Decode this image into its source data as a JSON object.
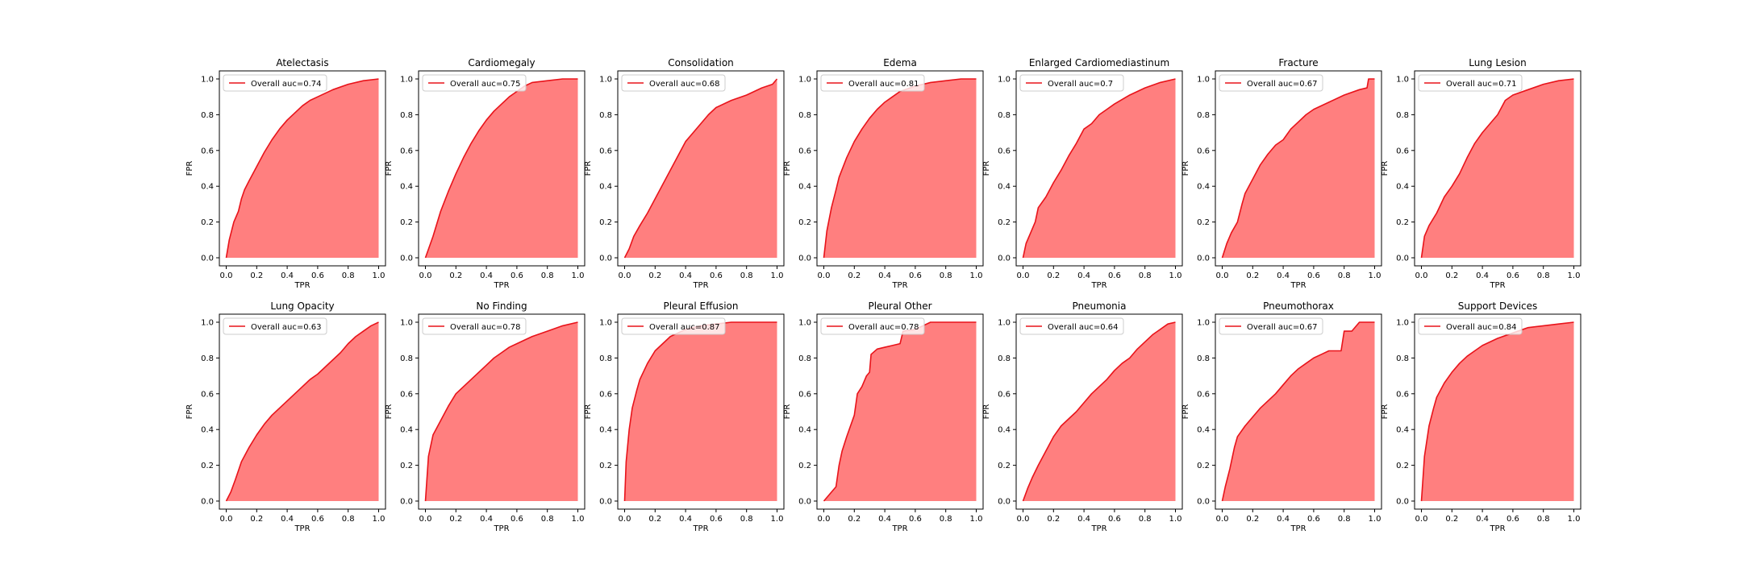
{
  "figure": {
    "curve_color": "#e8131a",
    "fill_color": "#ff7f7f",
    "legend_prefix": "Overall auc="
  },
  "chart_data": [
    {
      "type": "area",
      "title": "Atelectasis",
      "xlabel": "TPR",
      "ylabel": "FPR",
      "xlim": [
        0,
        1
      ],
      "ylim": [
        0,
        1
      ],
      "xticks": [
        "0.0",
        "0.2",
        "0.4",
        "0.6",
        "0.8",
        "1.0"
      ],
      "yticks": [
        "0.0",
        "0.2",
        "0.4",
        "0.6",
        "0.8",
        "1.0"
      ],
      "legend": {
        "label": "Overall auc=0.74",
        "placement": "upper-left"
      },
      "series": [
        {
          "name": "Overall auc=0.74",
          "x": [
            0,
            0.02,
            0.05,
            0.08,
            0.1,
            0.12,
            0.15,
            0.2,
            0.25,
            0.3,
            0.35,
            0.4,
            0.45,
            0.5,
            0.55,
            0.6,
            0.7,
            0.8,
            0.9,
            1.0
          ],
          "y": [
            0,
            0.1,
            0.2,
            0.26,
            0.33,
            0.38,
            0.43,
            0.51,
            0.59,
            0.66,
            0.72,
            0.77,
            0.81,
            0.85,
            0.88,
            0.9,
            0.94,
            0.97,
            0.99,
            1.0
          ]
        }
      ]
    },
    {
      "type": "area",
      "title": "Cardiomegaly",
      "xlabel": "TPR",
      "ylabel": "FPR",
      "xlim": [
        0,
        1
      ],
      "ylim": [
        0,
        1
      ],
      "xticks": [
        "0.0",
        "0.2",
        "0.4",
        "0.6",
        "0.8",
        "1.0"
      ],
      "yticks": [
        "0.0",
        "0.2",
        "0.4",
        "0.6",
        "0.8",
        "1.0"
      ],
      "legend": {
        "label": "Overall auc=0.75",
        "placement": "upper-left"
      },
      "series": [
        {
          "name": "Overall auc=0.75",
          "x": [
            0,
            0.05,
            0.1,
            0.15,
            0.2,
            0.25,
            0.3,
            0.35,
            0.4,
            0.45,
            0.5,
            0.55,
            0.6,
            0.65,
            0.7,
            0.8,
            0.9,
            1.0
          ],
          "y": [
            0,
            0.12,
            0.26,
            0.37,
            0.47,
            0.56,
            0.64,
            0.71,
            0.77,
            0.82,
            0.86,
            0.9,
            0.93,
            0.96,
            0.98,
            0.99,
            1.0,
            1.0
          ]
        }
      ]
    },
    {
      "type": "area",
      "title": "Consolidation",
      "xlabel": "TPR",
      "ylabel": "FPR",
      "xlim": [
        0,
        1
      ],
      "ylim": [
        0,
        1
      ],
      "xticks": [
        "0.0",
        "0.2",
        "0.4",
        "0.6",
        "0.8",
        "1.0"
      ],
      "yticks": [
        "0.0",
        "0.2",
        "0.4",
        "0.6",
        "0.8",
        "1.0"
      ],
      "legend": {
        "label": "Overall auc=0.68",
        "placement": "upper-left"
      },
      "series": [
        {
          "name": "Overall auc=0.68",
          "x": [
            0,
            0.03,
            0.06,
            0.1,
            0.15,
            0.2,
            0.25,
            0.3,
            0.35,
            0.4,
            0.45,
            0.5,
            0.55,
            0.6,
            0.7,
            0.8,
            0.9,
            0.97,
            1.0
          ],
          "y": [
            0,
            0.05,
            0.12,
            0.18,
            0.25,
            0.33,
            0.41,
            0.49,
            0.57,
            0.65,
            0.7,
            0.75,
            0.8,
            0.84,
            0.88,
            0.91,
            0.95,
            0.97,
            1.0
          ]
        }
      ]
    },
    {
      "type": "area",
      "title": "Edema",
      "xlabel": "TPR",
      "ylabel": "FPR",
      "xlim": [
        0,
        1
      ],
      "ylim": [
        0,
        1
      ],
      "xticks": [
        "0.0",
        "0.2",
        "0.4",
        "0.6",
        "0.8",
        "1.0"
      ],
      "yticks": [
        "0.0",
        "0.2",
        "0.4",
        "0.6",
        "0.8",
        "1.0"
      ],
      "legend": {
        "label": "Overall auc=0.81",
        "placement": "upper-left"
      },
      "series": [
        {
          "name": "Overall auc=0.81",
          "x": [
            0,
            0.02,
            0.05,
            0.08,
            0.1,
            0.15,
            0.2,
            0.25,
            0.3,
            0.35,
            0.4,
            0.45,
            0.5,
            0.6,
            0.7,
            0.8,
            0.9,
            1.0
          ],
          "y": [
            0,
            0.15,
            0.28,
            0.38,
            0.45,
            0.56,
            0.65,
            0.72,
            0.78,
            0.83,
            0.87,
            0.9,
            0.93,
            0.96,
            0.98,
            0.99,
            1.0,
            1.0
          ]
        }
      ]
    },
    {
      "type": "area",
      "title": "Enlarged Cardiomediastinum",
      "xlabel": "TPR",
      "ylabel": "FPR",
      "xlim": [
        0,
        1
      ],
      "ylim": [
        0,
        1
      ],
      "xticks": [
        "0.0",
        "0.2",
        "0.4",
        "0.6",
        "0.8",
        "1.0"
      ],
      "yticks": [
        "0.0",
        "0.2",
        "0.4",
        "0.6",
        "0.8",
        "1.0"
      ],
      "legend": {
        "label": "Overall auc=0.7",
        "placement": "upper-left"
      },
      "series": [
        {
          "name": "Overall auc=0.7",
          "x": [
            0,
            0.02,
            0.05,
            0.08,
            0.1,
            0.15,
            0.2,
            0.25,
            0.3,
            0.35,
            0.4,
            0.45,
            0.5,
            0.55,
            0.6,
            0.7,
            0.8,
            0.9,
            1.0
          ],
          "y": [
            0,
            0.08,
            0.14,
            0.2,
            0.28,
            0.34,
            0.42,
            0.49,
            0.57,
            0.64,
            0.72,
            0.75,
            0.8,
            0.83,
            0.86,
            0.91,
            0.95,
            0.98,
            1.0
          ]
        }
      ]
    },
    {
      "type": "area",
      "title": "Fracture",
      "xlabel": "TPR",
      "ylabel": "FPR",
      "xlim": [
        0,
        1
      ],
      "ylim": [
        0,
        1
      ],
      "xticks": [
        "0.0",
        "0.2",
        "0.4",
        "0.6",
        "0.8",
        "1.0"
      ],
      "yticks": [
        "0.0",
        "0.2",
        "0.4",
        "0.6",
        "0.8",
        "1.0"
      ],
      "legend": {
        "label": "Overall auc=0.67",
        "placement": "upper-left"
      },
      "series": [
        {
          "name": "Overall auc=0.67",
          "x": [
            0,
            0.03,
            0.06,
            0.1,
            0.13,
            0.15,
            0.2,
            0.25,
            0.3,
            0.35,
            0.4,
            0.45,
            0.5,
            0.55,
            0.6,
            0.7,
            0.8,
            0.9,
            0.95,
            0.96,
            1.0
          ],
          "y": [
            0,
            0.08,
            0.14,
            0.2,
            0.3,
            0.36,
            0.44,
            0.52,
            0.58,
            0.63,
            0.66,
            0.72,
            0.76,
            0.8,
            0.83,
            0.87,
            0.91,
            0.94,
            0.95,
            1.0,
            1.0
          ]
        }
      ]
    },
    {
      "type": "area",
      "title": "Lung Lesion",
      "xlabel": "TPR",
      "ylabel": "FPR",
      "xlim": [
        0,
        1
      ],
      "ylim": [
        0,
        1
      ],
      "xticks": [
        "0.0",
        "0.2",
        "0.4",
        "0.6",
        "0.8",
        "1.0"
      ],
      "yticks": [
        "0.0",
        "0.2",
        "0.4",
        "0.6",
        "0.8",
        "1.0"
      ],
      "legend": {
        "label": "Overall auc=0.71",
        "placement": "upper-left"
      },
      "series": [
        {
          "name": "Overall auc=0.71",
          "x": [
            0,
            0.02,
            0.05,
            0.1,
            0.15,
            0.2,
            0.25,
            0.3,
            0.35,
            0.4,
            0.45,
            0.5,
            0.55,
            0.6,
            0.7,
            0.8,
            0.9,
            1.0
          ],
          "y": [
            0,
            0.12,
            0.18,
            0.25,
            0.34,
            0.4,
            0.47,
            0.56,
            0.64,
            0.7,
            0.75,
            0.8,
            0.88,
            0.91,
            0.94,
            0.97,
            0.99,
            1.0
          ]
        }
      ]
    },
    {
      "type": "area",
      "title": "Lung Opacity",
      "xlabel": "TPR",
      "ylabel": "FPR",
      "xlim": [
        0,
        1
      ],
      "ylim": [
        0,
        1
      ],
      "xticks": [
        "0.0",
        "0.2",
        "0.4",
        "0.6",
        "0.8",
        "1.0"
      ],
      "yticks": [
        "0.0",
        "0.2",
        "0.4",
        "0.6",
        "0.8",
        "1.0"
      ],
      "legend": {
        "label": "Overall auc=0.63",
        "placement": "upper-left"
      },
      "series": [
        {
          "name": "Overall auc=0.63",
          "x": [
            0,
            0.03,
            0.06,
            0.1,
            0.15,
            0.2,
            0.25,
            0.3,
            0.35,
            0.4,
            0.45,
            0.5,
            0.55,
            0.6,
            0.65,
            0.7,
            0.75,
            0.8,
            0.85,
            0.9,
            0.95,
            1.0
          ],
          "y": [
            0,
            0.05,
            0.12,
            0.22,
            0.3,
            0.37,
            0.43,
            0.48,
            0.52,
            0.56,
            0.6,
            0.64,
            0.68,
            0.71,
            0.75,
            0.79,
            0.83,
            0.88,
            0.92,
            0.95,
            0.98,
            1.0
          ]
        }
      ]
    },
    {
      "type": "area",
      "title": "No Finding",
      "xlabel": "TPR",
      "ylabel": "FPR",
      "xlim": [
        0,
        1
      ],
      "ylim": [
        0,
        1
      ],
      "xticks": [
        "0.0",
        "0.2",
        "0.4",
        "0.6",
        "0.8",
        "1.0"
      ],
      "yticks": [
        "0.0",
        "0.2",
        "0.4",
        "0.6",
        "0.8",
        "1.0"
      ],
      "legend": {
        "label": "Overall auc=0.78",
        "placement": "upper-left"
      },
      "series": [
        {
          "name": "Overall auc=0.78",
          "x": [
            0,
            0.02,
            0.05,
            0.1,
            0.15,
            0.2,
            0.25,
            0.3,
            0.35,
            0.4,
            0.45,
            0.5,
            0.55,
            0.6,
            0.7,
            0.8,
            0.9,
            1.0
          ],
          "y": [
            0,
            0.25,
            0.37,
            0.45,
            0.53,
            0.6,
            0.64,
            0.68,
            0.72,
            0.76,
            0.8,
            0.83,
            0.86,
            0.88,
            0.92,
            0.95,
            0.98,
            1.0
          ]
        }
      ]
    },
    {
      "type": "area",
      "title": "Pleural Effusion",
      "xlabel": "TPR",
      "ylabel": "FPR",
      "xlim": [
        0,
        1
      ],
      "ylim": [
        0,
        1
      ],
      "xticks": [
        "0.0",
        "0.2",
        "0.4",
        "0.6",
        "0.8",
        "1.0"
      ],
      "yticks": [
        "0.0",
        "0.2",
        "0.4",
        "0.6",
        "0.8",
        "1.0"
      ],
      "legend": {
        "label": "Overall auc=0.87",
        "placement": "upper-left"
      },
      "series": [
        {
          "name": "Overall auc=0.87",
          "x": [
            0,
            0.01,
            0.03,
            0.05,
            0.08,
            0.1,
            0.15,
            0.2,
            0.25,
            0.3,
            0.35,
            0.4,
            0.5,
            0.6,
            0.7,
            0.8,
            1.0
          ],
          "y": [
            0,
            0.22,
            0.4,
            0.52,
            0.62,
            0.68,
            0.77,
            0.84,
            0.88,
            0.92,
            0.94,
            0.96,
            0.98,
            0.99,
            1.0,
            1.0,
            1.0
          ]
        }
      ]
    },
    {
      "type": "area",
      "title": "Pleural Other",
      "xlabel": "TPR",
      "ylabel": "FPR",
      "xlim": [
        0,
        1
      ],
      "ylim": [
        0,
        1
      ],
      "xticks": [
        "0.0",
        "0.2",
        "0.4",
        "0.6",
        "0.8",
        "1.0"
      ],
      "yticks": [
        "0.0",
        "0.2",
        "0.4",
        "0.6",
        "0.8",
        "1.0"
      ],
      "legend": {
        "label": "Overall auc=0.78",
        "placement": "upper-left"
      },
      "series": [
        {
          "name": "Overall auc=0.78",
          "x": [
            0,
            0.05,
            0.08,
            0.1,
            0.12,
            0.15,
            0.2,
            0.22,
            0.25,
            0.28,
            0.3,
            0.31,
            0.35,
            0.4,
            0.45,
            0.5,
            0.52,
            0.6,
            0.65,
            0.7,
            0.8,
            0.9,
            1.0
          ],
          "y": [
            0,
            0.05,
            0.08,
            0.2,
            0.28,
            0.36,
            0.48,
            0.6,
            0.64,
            0.7,
            0.72,
            0.82,
            0.85,
            0.86,
            0.87,
            0.88,
            0.95,
            0.96,
            0.98,
            1.0,
            1.0,
            1.0,
            1.0
          ]
        }
      ]
    },
    {
      "type": "area",
      "title": "Pneumonia",
      "xlabel": "TPR",
      "ylabel": "FPR",
      "xlim": [
        0,
        1
      ],
      "ylim": [
        0,
        1
      ],
      "xticks": [
        "0.0",
        "0.2",
        "0.4",
        "0.6",
        "0.8",
        "1.0"
      ],
      "yticks": [
        "0.0",
        "0.2",
        "0.4",
        "0.6",
        "0.8",
        "1.0"
      ],
      "legend": {
        "label": "Overall auc=0.64",
        "placement": "upper-left"
      },
      "series": [
        {
          "name": "Overall auc=0.64",
          "x": [
            0,
            0.03,
            0.06,
            0.1,
            0.15,
            0.2,
            0.25,
            0.3,
            0.35,
            0.4,
            0.45,
            0.5,
            0.55,
            0.6,
            0.65,
            0.7,
            0.75,
            0.8,
            0.85,
            0.9,
            0.95,
            1.0
          ],
          "y": [
            0,
            0.07,
            0.13,
            0.2,
            0.28,
            0.36,
            0.42,
            0.46,
            0.5,
            0.55,
            0.6,
            0.64,
            0.68,
            0.73,
            0.77,
            0.8,
            0.85,
            0.89,
            0.93,
            0.96,
            0.99,
            1.0
          ]
        }
      ]
    },
    {
      "type": "area",
      "title": "Pneumothorax",
      "xlabel": "TPR",
      "ylabel": "FPR",
      "xlim": [
        0,
        1
      ],
      "ylim": [
        0,
        1
      ],
      "xticks": [
        "0.0",
        "0.2",
        "0.4",
        "0.6",
        "0.8",
        "1.0"
      ],
      "yticks": [
        "0.0",
        "0.2",
        "0.4",
        "0.6",
        "0.8",
        "1.0"
      ],
      "legend": {
        "label": "Overall auc=0.67",
        "placement": "upper-left"
      },
      "series": [
        {
          "name": "Overall auc=0.67",
          "x": [
            0,
            0.02,
            0.05,
            0.08,
            0.1,
            0.15,
            0.2,
            0.25,
            0.3,
            0.35,
            0.4,
            0.45,
            0.5,
            0.55,
            0.6,
            0.65,
            0.7,
            0.75,
            0.78,
            0.8,
            0.85,
            0.9,
            0.95,
            1.0
          ],
          "y": [
            0,
            0.08,
            0.18,
            0.3,
            0.36,
            0.42,
            0.47,
            0.52,
            0.56,
            0.6,
            0.65,
            0.7,
            0.74,
            0.77,
            0.8,
            0.82,
            0.84,
            0.84,
            0.84,
            0.95,
            0.95,
            1.0,
            1.0,
            1.0
          ]
        }
      ]
    },
    {
      "type": "area",
      "title": "Support Devices",
      "xlabel": "TPR",
      "ylabel": "FPR",
      "xlim": [
        0,
        1
      ],
      "ylim": [
        0,
        1
      ],
      "xticks": [
        "0.0",
        "0.2",
        "0.4",
        "0.6",
        "0.8",
        "1.0"
      ],
      "yticks": [
        "0.0",
        "0.2",
        "0.4",
        "0.6",
        "0.8",
        "1.0"
      ],
      "legend": {
        "label": "Overall auc=0.84",
        "placement": "upper-left"
      },
      "series": [
        {
          "name": "Overall auc=0.84",
          "x": [
            0,
            0.02,
            0.05,
            0.08,
            0.1,
            0.15,
            0.2,
            0.25,
            0.3,
            0.35,
            0.4,
            0.5,
            0.6,
            0.7,
            0.8,
            0.9,
            1.0
          ],
          "y": [
            0,
            0.25,
            0.42,
            0.52,
            0.58,
            0.66,
            0.72,
            0.77,
            0.81,
            0.84,
            0.87,
            0.91,
            0.94,
            0.97,
            0.98,
            0.99,
            1.0
          ]
        }
      ]
    }
  ]
}
